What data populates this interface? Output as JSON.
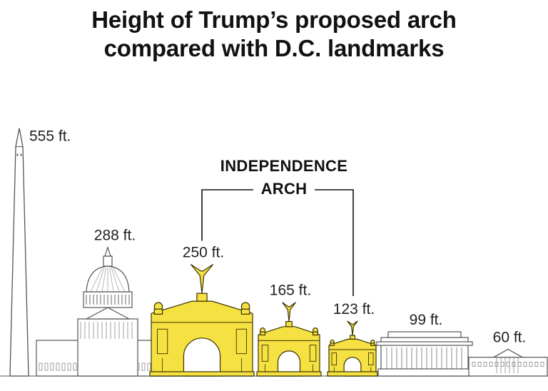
{
  "title_lines": [
    "Height of Trump’s proposed arch",
    "compared with D.C. landmarks"
  ],
  "group_label": [
    "INDEPENDENCE",
    "ARCH"
  ],
  "colors": {
    "arch_fill": "#f5e142",
    "arch_stroke": "#3a3300",
    "landmark_stroke": "#555555",
    "landmark_fill": "#ffffff",
    "text": "#222222"
  },
  "chart_data": {
    "type": "bar",
    "title": "Height of Trump’s proposed arch compared with D.C. landmarks",
    "unit": "ft.",
    "categories": [
      "",
      "",
      "",
      "",
      "",
      "",
      ""
    ],
    "values": [
      555,
      288,
      250,
      165,
      123,
      99,
      60
    ],
    "labels": [
      "555 ft.",
      "288 ft.",
      "250 ft.",
      "165 ft.",
      "123 ft.",
      "99 ft.",
      "60 ft."
    ],
    "shapes": [
      "obelisk",
      "capitol",
      "arch",
      "arch",
      "arch",
      "gallery",
      "house"
    ],
    "highlight": [
      false,
      false,
      true,
      true,
      true,
      false,
      false
    ],
    "grouped_label": "INDEPENDENCE ARCH",
    "grid": false,
    "legend": "none"
  }
}
